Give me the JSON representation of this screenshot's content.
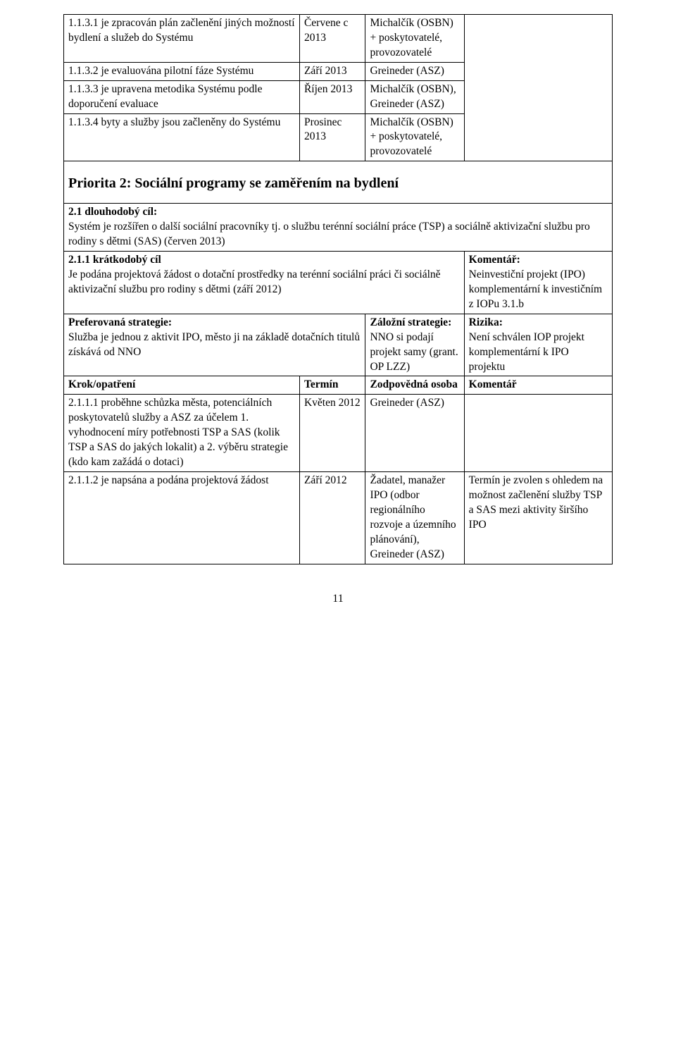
{
  "table1": {
    "rows": [
      {
        "a": "1.1.3.1 je zpracován plán začlenění jiných možností bydlení a služeb do Systému",
        "b": "Červene c 2013",
        "c": "Michalčík (OSBN) + poskytovatelé, provozovatelé",
        "d": ""
      },
      {
        "a": "1.1.3.2 je evaluována pilotní fáze Systému",
        "b": "Září 2013",
        "c": "Greineder (ASZ)",
        "d": "."
      },
      {
        "a": "1.1.3.3 je upravena metodika Systému podle doporučení evaluace",
        "b": "Říjen 2013",
        "c": "Michalčík (OSBN), Greineder (ASZ)",
        "d": ""
      },
      {
        "a": "1.1.3.4 byty a služby jsou začleněny do Systému",
        "b": "Prosinec 2013",
        "c": "Michalčík (OSBN) + poskytovatelé, provozovatelé",
        "d": ""
      }
    ]
  },
  "priority_heading": "Priorita 2:  Sociální programy se zaměřením na bydlení",
  "goal_line1": "2.1    dlouhodobý cíl:",
  "goal_line2": "Systém je rozšířen o další sociální pracovníky tj. o službu terénní sociální práce (TSP) a sociálně aktivizační službu pro rodiny s dětmi (SAS) (červen 2013)",
  "short_goal_title": "2.1.1    krátkodobý cíl",
  "short_goal_text": "Je podána projektová žádost o dotační prostředky na terénní sociální práci či sociálně aktivizační službu pro rodiny s dětmi (září 2012)",
  "comment_label": "Komentář:",
  "comment_text": "Neinvestiční projekt (IPO) komplementární k investičním z IOPu 3.1.b",
  "pref_label": "Preferovaná strategie:",
  "pref_text": "Služba je jednou z aktivit IPO, město ji na základě dotačních titulů získává od NNO",
  "fallback_label": "Záložní strategie:",
  "fallback_text": "NNO si podají projekt samy (grant. OP LZZ)",
  "risk_label": "Rizika:",
  "risk_text": "Není schválen IOP projekt komplementární k IPO projektu",
  "hdr_step": "Krok/opatření",
  "hdr_term": "Termín",
  "hdr_person": "Zodpovědná osoba",
  "hdr_comment": "Komentář",
  "steps": [
    {
      "a": "2.1.1.1  proběhne schůzka města, potenciálních poskytovatelů služby a ASZ za účelem 1. vyhodnocení míry potřebnosti TSP a SAS (kolik TSP a SAS do jakých lokalit) a 2. výběru strategie (kdo kam zažádá o dotaci)",
      "b": "Květen 2012",
      "c": "Greineder (ASZ)",
      "d": ""
    },
    {
      "a": "2.1.1.2  je napsána a podána projektová žádost",
      "b": "Září 2012",
      "c": "Žadatel, manažer IPO (odbor regionálního rozvoje a územního plánování), Greineder (ASZ)",
      "d": "Termín je zvolen s ohledem na možnost začlenění služby TSP a SAS mezi aktivity širšího IPO"
    }
  ],
  "pagenum": "11"
}
